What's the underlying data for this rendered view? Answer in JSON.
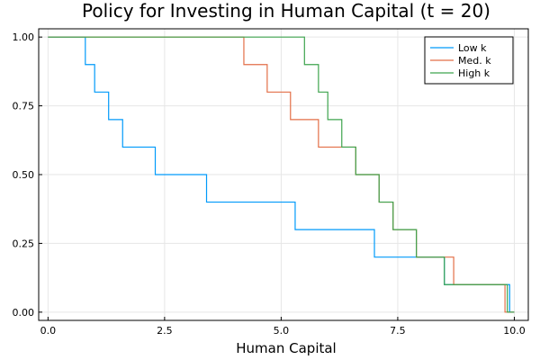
{
  "chart_data": {
    "type": "line",
    "title": "Policy for Investing in Human Capital (t = 20)",
    "xlabel": "Human Capital",
    "ylabel": "",
    "xlim": [
      -0.2,
      10.3
    ],
    "ylim": [
      -0.03,
      1.03
    ],
    "xticks": [
      0.0,
      2.5,
      5.0,
      7.5,
      10.0
    ],
    "xtick_labels": [
      "0.0",
      "2.5",
      "5.0",
      "7.5",
      "10.0"
    ],
    "yticks": [
      0.0,
      0.25,
      0.5,
      0.75,
      1.0
    ],
    "ytick_labels": [
      "0.00",
      "0.25",
      "0.50",
      "0.75",
      "1.00"
    ],
    "grid": true,
    "legend_position": "top-right",
    "step": "post",
    "series": [
      {
        "name": "Low k",
        "color": "#009AFA",
        "x": [
          0.0,
          0.8,
          1.0,
          1.3,
          1.6,
          2.3,
          3.4,
          5.3,
          7.0,
          8.4,
          8.5,
          9.9,
          10.0
        ],
        "y": [
          1.0,
          0.9,
          0.8,
          0.7,
          0.6,
          0.5,
          0.4,
          0.3,
          0.2,
          0.2,
          0.1,
          0.0,
          0.0
        ]
      },
      {
        "name": "Med. k",
        "color": "#E36F47",
        "x": [
          0.0,
          4.2,
          4.3,
          4.7,
          5.2,
          5.8,
          6.3,
          6.6,
          7.1,
          7.4,
          7.9,
          8.6,
          8.7,
          9.8,
          10.0
        ],
        "y": [
          1.0,
          0.9,
          0.9,
          0.8,
          0.7,
          0.6,
          0.6,
          0.5,
          0.4,
          0.3,
          0.2,
          0.2,
          0.1,
          0.0,
          0.0
        ]
      },
      {
        "name": "High k",
        "color": "#3EA44E",
        "x": [
          0.0,
          5.5,
          5.6,
          5.8,
          6.0,
          6.3,
          6.6,
          7.1,
          7.4,
          7.9,
          8.5,
          9.85,
          10.0
        ],
        "y": [
          1.0,
          0.9,
          0.9,
          0.8,
          0.7,
          0.6,
          0.5,
          0.4,
          0.3,
          0.2,
          0.1,
          0.0,
          0.0
        ]
      }
    ]
  }
}
